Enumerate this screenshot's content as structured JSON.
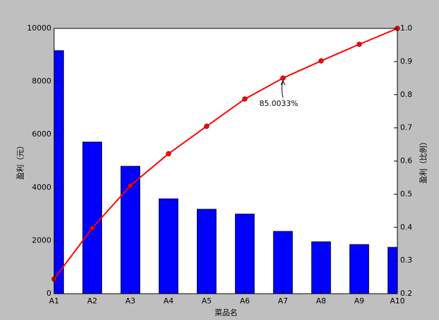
{
  "chart_data": {
    "type": "pareto",
    "xlabel": "菜品名",
    "ylabel": "盈利（元）",
    "y2label": "盈利（比例）",
    "categories": [
      "A1",
      "A2",
      "A3",
      "A4",
      "A5",
      "A6",
      "A7",
      "A8",
      "A9",
      "A10"
    ],
    "series": [
      {
        "type": "bar",
        "color": "#0000ff",
        "values": [
          9164,
          5718,
          4804,
          3577,
          3185,
          3003,
          2350,
          1958,
          1854,
          1749
        ]
      },
      {
        "type": "line",
        "axis": "y2",
        "color": "#ff0000",
        "values": [
          0.244,
          0.398,
          0.526,
          0.622,
          0.705,
          0.787,
          0.850033,
          0.902,
          0.952,
          1.0
        ]
      }
    ],
    "ylim": [
      0,
      10000
    ],
    "yticks": [
      0,
      2000,
      4000,
      6000,
      8000,
      10000
    ],
    "y2lim": [
      0.2,
      1.0
    ],
    "y2ticks": [
      0.2,
      0.3,
      0.4,
      0.5,
      0.6,
      0.7,
      0.8,
      0.9,
      {
        "value": 1.0,
        "label": "1.0"
      }
    ],
    "annotations": [
      "85.0033%"
    ],
    "grid": false
  }
}
